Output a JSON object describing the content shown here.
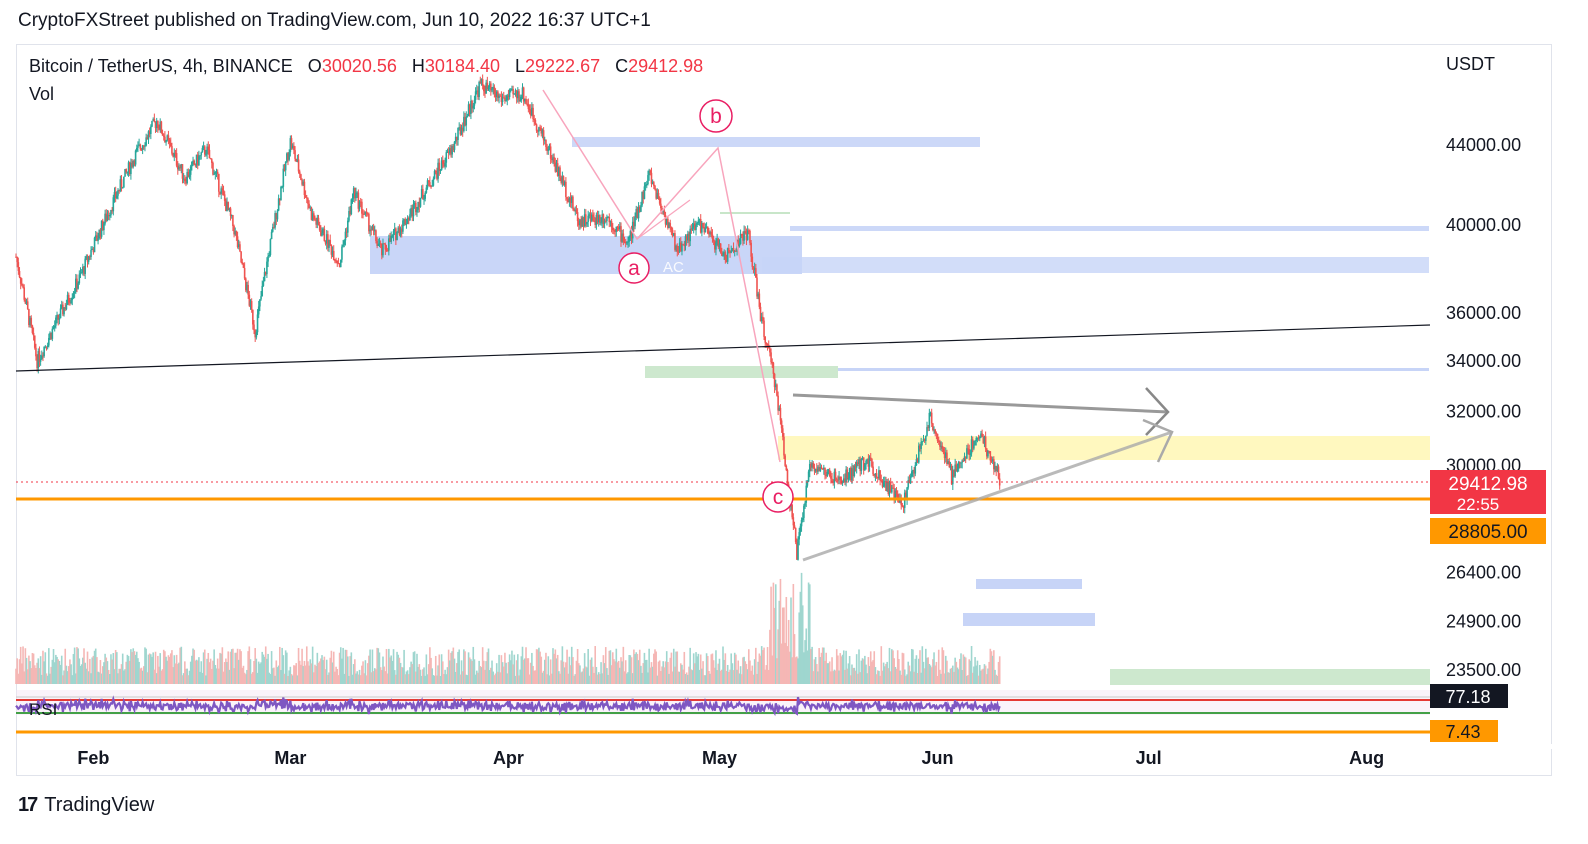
{
  "header": {
    "published": "CryptoFXStreet published on TradingView.com, Jun 10, 2022 16:37 UTC+1"
  },
  "legend": {
    "symbol": "Bitcoin / TetherUS, 4h, BINANCE",
    "open_label": "O",
    "open": "30020.56",
    "high_label": "H",
    "high": "30184.40",
    "low_label": "L",
    "low": "29222.67",
    "close_label": "C",
    "close": "29412.98",
    "vol": "Vol",
    "rsi": "RSI"
  },
  "axis": {
    "currency": "USDT"
  },
  "price_badges": {
    "last_price": "29412.98",
    "countdown": "22:55",
    "level": "28805.00",
    "rsi_upper": "77.18",
    "rsi_lower": "7.43"
  },
  "wave_labels": {
    "a": "a",
    "b": "b",
    "c": "c"
  },
  "footer": {
    "brand": "TradingView",
    "logo": "17"
  },
  "colors": {
    "up": "#26a69a",
    "down": "#ef5350",
    "orange": "#ff9800",
    "blue_zone": "#b3c6f5",
    "yellow_zone": "#fff59d",
    "green_zone": "#c8e6c9",
    "rsi_line": "#7e57c2",
    "wave": "#e91e63"
  },
  "chart_data": {
    "type": "candlestick",
    "symbol": "BTCUSDT",
    "timeframe": "4h",
    "y_ticks": [
      44000,
      40000,
      36000,
      34000,
      32000,
      30000,
      26400,
      24900,
      23500
    ],
    "x_labels": [
      "Feb",
      "Mar",
      "Apr",
      "May",
      "Jun",
      "Jul",
      "Aug"
    ],
    "x_label_dates": [
      "2022-02-01",
      "2022-03-01",
      "2022-04-01",
      "2022-05-01",
      "2022-06-01",
      "2022-07-01",
      "2022-08-01"
    ],
    "x_range": [
      "2022-01-21",
      "2022-08-10"
    ],
    "approx_path": [
      {
        "date": "2022-01-21",
        "close": 38500
      },
      {
        "date": "2022-01-24",
        "close": 34000
      },
      {
        "date": "2022-01-30",
        "close": 37500
      },
      {
        "date": "2022-02-07",
        "close": 43500
      },
      {
        "date": "2022-02-10",
        "close": 45300
      },
      {
        "date": "2022-02-14",
        "close": 42300
      },
      {
        "date": "2022-02-17",
        "close": 43800
      },
      {
        "date": "2022-02-21",
        "close": 39800
      },
      {
        "date": "2022-02-24",
        "close": 35200
      },
      {
        "date": "2022-03-01",
        "close": 44200
      },
      {
        "date": "2022-03-04",
        "close": 40500
      },
      {
        "date": "2022-03-08",
        "close": 38200
      },
      {
        "date": "2022-03-10",
        "close": 41600
      },
      {
        "date": "2022-03-14",
        "close": 38700
      },
      {
        "date": "2022-03-18",
        "close": 40500
      },
      {
        "date": "2022-03-24",
        "close": 43800
      },
      {
        "date": "2022-03-28",
        "close": 47300
      },
      {
        "date": "2022-03-31",
        "close": 46500
      },
      {
        "date": "2022-04-03",
        "close": 46800
      },
      {
        "date": "2022-04-07",
        "close": 43500
      },
      {
        "date": "2022-04-11",
        "close": 40200
      },
      {
        "date": "2022-04-15",
        "close": 40400
      },
      {
        "date": "2022-04-18",
        "close": 39100
      },
      {
        "date": "2022-04-21",
        "close": 42500
      },
      {
        "date": "2022-04-25",
        "close": 38800
      },
      {
        "date": "2022-04-28",
        "close": 40100
      },
      {
        "date": "2022-05-02",
        "close": 38500
      },
      {
        "date": "2022-05-05",
        "close": 39700
      },
      {
        "date": "2022-05-07",
        "close": 35600
      },
      {
        "date": "2022-05-09",
        "close": 33000
      },
      {
        "date": "2022-05-11",
        "close": 28800
      },
      {
        "date": "2022-05-12",
        "close": 27000
      },
      {
        "date": "2022-05-14",
        "close": 30100
      },
      {
        "date": "2022-05-18",
        "close": 29400
      },
      {
        "date": "2022-05-22",
        "close": 30200
      },
      {
        "date": "2022-05-27",
        "close": 28600
      },
      {
        "date": "2022-05-31",
        "close": 31800
      },
      {
        "date": "2022-06-03",
        "close": 29600
      },
      {
        "date": "2022-06-07",
        "close": 31200
      },
      {
        "date": "2022-06-10",
        "close": 29413
      }
    ],
    "current_price": 29412.98,
    "horizontal_level": 28805.0,
    "rsi": {
      "upper": 77.18,
      "lower": 7.43
    },
    "annotations": [
      "a",
      "b",
      "c",
      "AC"
    ]
  }
}
